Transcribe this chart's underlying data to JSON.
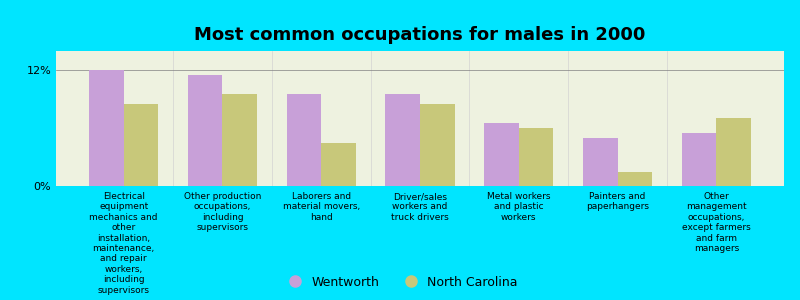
{
  "title": "Most common occupations for males in 2000",
  "background_color": "#00e5ff",
  "plot_bg_color": "#eef2e0",
  "categories": [
    "Electrical\nequipment\nmechanics and\nother\ninstallation,\nmaintenance,\nand repair\nworkers,\nincluding\nsupervisors",
    "Other production\noccupations,\nincluding\nsupervisors",
    "Laborers and\nmaterial movers,\nhand",
    "Driver/sales\nworkers and\ntruck drivers",
    "Metal workers\nand plastic\nworkers",
    "Painters and\npaperhangers",
    "Other\nmanagement\noccupations,\nexcept farmers\nand farm\nmanagers"
  ],
  "wentworth_values": [
    12.0,
    11.5,
    9.5,
    9.5,
    6.5,
    5.0,
    5.5
  ],
  "nc_values": [
    8.5,
    9.5,
    4.5,
    8.5,
    6.0,
    1.5,
    7.0
  ],
  "wentworth_color": "#c8a0d8",
  "nc_color": "#c8c87a",
  "ylim": [
    0,
    14
  ],
  "yticks": [
    0,
    12
  ],
  "ytick_labels": [
    "0%",
    "12%"
  ],
  "bar_width": 0.35,
  "legend_wentworth": "Wentworth",
  "legend_nc": "North Carolina"
}
